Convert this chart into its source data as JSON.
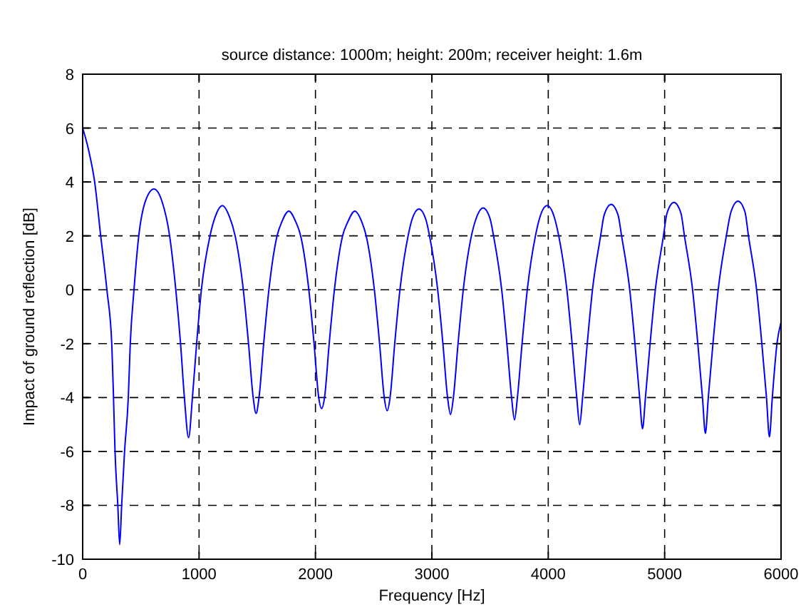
{
  "chart_data": {
    "type": "line",
    "title": "source distance: 1000m; height: 200m; receiver height: 1.6m",
    "xlabel": "Frequency [Hz]",
    "ylabel": "Impact of ground reflection [dB]",
    "xlim": [
      0,
      6000
    ],
    "ylim": [
      -10,
      8
    ],
    "xticks": [
      0,
      1000,
      2000,
      3000,
      4000,
      5000,
      6000
    ],
    "yticks": [
      -10,
      -8,
      -6,
      -4,
      -2,
      0,
      2,
      4,
      6,
      8
    ],
    "grid": true,
    "line_style": "solid",
    "series": [
      {
        "color": "#0000ff",
        "x": [
          0,
          50,
          103,
          155,
          208,
          250,
          265,
          278,
          302,
          318,
          335,
          360,
          392,
          409,
          441,
          482,
          540,
          612,
          680,
          747,
          800,
          841,
          874,
          910,
          943,
          979,
          1020,
          1094,
          1140,
          1200,
          1260,
          1310,
          1380,
          1425,
          1465,
          1490,
          1515,
          1555,
          1600,
          1670,
          1711,
          1771,
          1831,
          1873,
          1943,
          1988,
          2028,
          2053,
          2078,
          2118,
          2163,
          2233,
          2278,
          2338,
          2398,
          2436,
          2506,
          2551,
          2591,
          2616,
          2641,
          2681,
          2726,
          2796,
          2829,
          2889,
          2949,
          2980,
          3050,
          3095,
          3135,
          3160,
          3185,
          3225,
          3270,
          3340,
          3380,
          3440,
          3500,
          3530,
          3600,
          3645,
          3685,
          3710,
          3735,
          3775,
          3820,
          3890,
          3930,
          3990,
          4050,
          4090,
          4160,
          4205,
          4245,
          4270,
          4295,
          4335,
          4380,
          4450,
          4480,
          4540,
          4600,
          4630,
          4700,
          4745,
          4785,
          4810,
          4835,
          4875,
          4920,
          4990,
          5020,
          5080,
          5140,
          5170,
          5240,
          5285,
          5325,
          5350,
          5375,
          5415,
          5460,
          5530,
          5570,
          5630,
          5690,
          5720,
          5790,
          5835,
          5875,
          5900,
          5925,
          5965,
          6000
        ],
        "values": [
          6,
          5.2,
          4,
          2,
          0,
          -2,
          -4,
          -6,
          -8,
          -9.46,
          -8,
          -6,
          -4,
          -2,
          0,
          2,
          3.3,
          3.74,
          3.3,
          2,
          0,
          -2,
          -4,
          -5.49,
          -4,
          -2,
          0,
          2,
          2.72,
          3.12,
          2.72,
          2,
          0,
          -2,
          -4,
          -4.59,
          -4,
          -2,
          0,
          2,
          2.52,
          2.92,
          2.52,
          2,
          0,
          -2,
          -4,
          -4.41,
          -4,
          -2,
          0,
          2,
          2.52,
          2.92,
          2.52,
          2,
          0,
          -2,
          -4,
          -4.49,
          -4,
          -2,
          0,
          2,
          2.6,
          3.0,
          2.6,
          2,
          0,
          -2,
          -4,
          -4.63,
          -4,
          -2,
          0,
          2,
          2.64,
          3.04,
          2.64,
          2,
          0,
          -2,
          -4,
          -4.83,
          -4,
          -2,
          0,
          2,
          2.72,
          3.12,
          2.72,
          2,
          0,
          -2,
          -4,
          -5.01,
          -4,
          -2,
          0,
          2,
          2.77,
          3.17,
          2.77,
          2,
          0,
          -2,
          -4,
          -5.16,
          -4,
          -2,
          0,
          2,
          2.84,
          3.24,
          2.84,
          2,
          0,
          -2,
          -4,
          -5.33,
          -4,
          -2,
          0,
          2,
          2.89,
          3.29,
          2.89,
          2,
          0,
          -2,
          -4,
          -5.46,
          -4,
          -2,
          -1.2
        ]
      }
    ]
  }
}
